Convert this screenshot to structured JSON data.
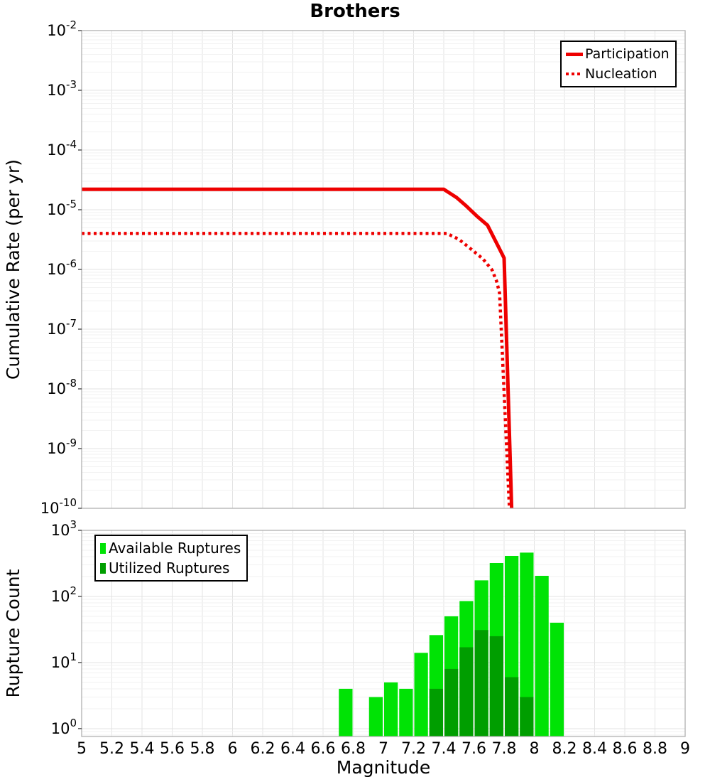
{
  "figure_title": "Brothers",
  "colors": {
    "participation_line": "#ee0000",
    "nucleation_line": "#ee0000",
    "available_bar": "#00e305",
    "utilized_bar": "#009e00",
    "grid_major": "#e3e3e3",
    "grid_minor": "#f2f2f2",
    "frame": "#b0b0b0"
  },
  "chart_data": [
    {
      "type": "line",
      "title": "Brothers",
      "ylabel": "Cumulative Rate (per yr)",
      "xlabel": "",
      "xlim": [
        5,
        9
      ],
      "x_major_step": 0.2,
      "ylog_exponent_range": [
        -10,
        -2
      ],
      "y_tick_exponents": [
        -2,
        -3,
        -4,
        -5,
        -6,
        -7,
        -8,
        -9,
        -10
      ],
      "x_tick_labels": [],
      "grid": true,
      "legend_position": "top-right",
      "series": [
        {
          "name": "Participation",
          "line_style": "solid",
          "color": "#ee0000",
          "points": [
            [
              5.0,
              2.2e-05
            ],
            [
              7.4,
              2.2e-05
            ],
            [
              7.485,
              1.6e-05
            ],
            [
              7.55,
              1.15e-05
            ],
            [
              7.625,
              7.6e-06
            ],
            [
              7.69,
              5.5e-06
            ],
            [
              7.77,
              2.2e-06
            ],
            [
              7.8,
              1.55e-06
            ],
            [
              7.85,
              1e-10
            ]
          ]
        },
        {
          "name": "Nucleation",
          "line_style": "dotted",
          "color": "#ee0000",
          "points": [
            [
              5.0,
              4e-06
            ],
            [
              7.42,
              4e-06
            ],
            [
              7.5,
              3.2e-06
            ],
            [
              7.58,
              2.2e-06
            ],
            [
              7.66,
              1.5e-06
            ],
            [
              7.72,
              9.8e-07
            ],
            [
              7.75,
              6.4e-07
            ],
            [
              7.77,
              4e-07
            ],
            [
              7.835,
              1e-10
            ]
          ]
        }
      ]
    },
    {
      "type": "bar",
      "title": "",
      "ylabel": "Rupture Count",
      "xlabel": "Magnitude",
      "xlim": [
        5,
        9
      ],
      "x_major_step": 0.2,
      "ylog_exponent_range": [
        -0.12,
        3
      ],
      "y_tick_exponents": [
        3,
        2,
        1,
        0
      ],
      "x_tick_labels": [
        "5",
        "5.2",
        "5.4",
        "5.6",
        "5.8",
        "6",
        "6.2",
        "6.4",
        "6.6",
        "6.8",
        "7",
        "7.2",
        "7.4",
        "7.6",
        "7.8",
        "8",
        "8.2",
        "8.4",
        "8.6",
        "8.8",
        "9"
      ],
      "bin_width": 0.1,
      "grid": true,
      "legend_position": "top-left",
      "series": [
        {
          "name": "Available Ruptures",
          "color": "#00e305",
          "bins": [
            [
              6.7,
              4
            ],
            [
              6.9,
              3
            ],
            [
              7.0,
              5
            ],
            [
              7.1,
              4
            ],
            [
              7.2,
              14
            ],
            [
              7.3,
              26
            ],
            [
              7.4,
              50
            ],
            [
              7.5,
              85
            ],
            [
              7.6,
              175
            ],
            [
              7.7,
              320
            ],
            [
              7.8,
              410
            ],
            [
              7.9,
              460
            ],
            [
              8.0,
              205
            ],
            [
              8.1,
              40
            ]
          ]
        },
        {
          "name": "Utilized Ruptures",
          "color": "#009e00",
          "bins": [
            [
              7.3,
              4
            ],
            [
              7.4,
              8
            ],
            [
              7.5,
              17
            ],
            [
              7.6,
              31
            ],
            [
              7.7,
              25
            ],
            [
              7.8,
              6
            ],
            [
              7.9,
              3
            ]
          ]
        }
      ]
    }
  ]
}
